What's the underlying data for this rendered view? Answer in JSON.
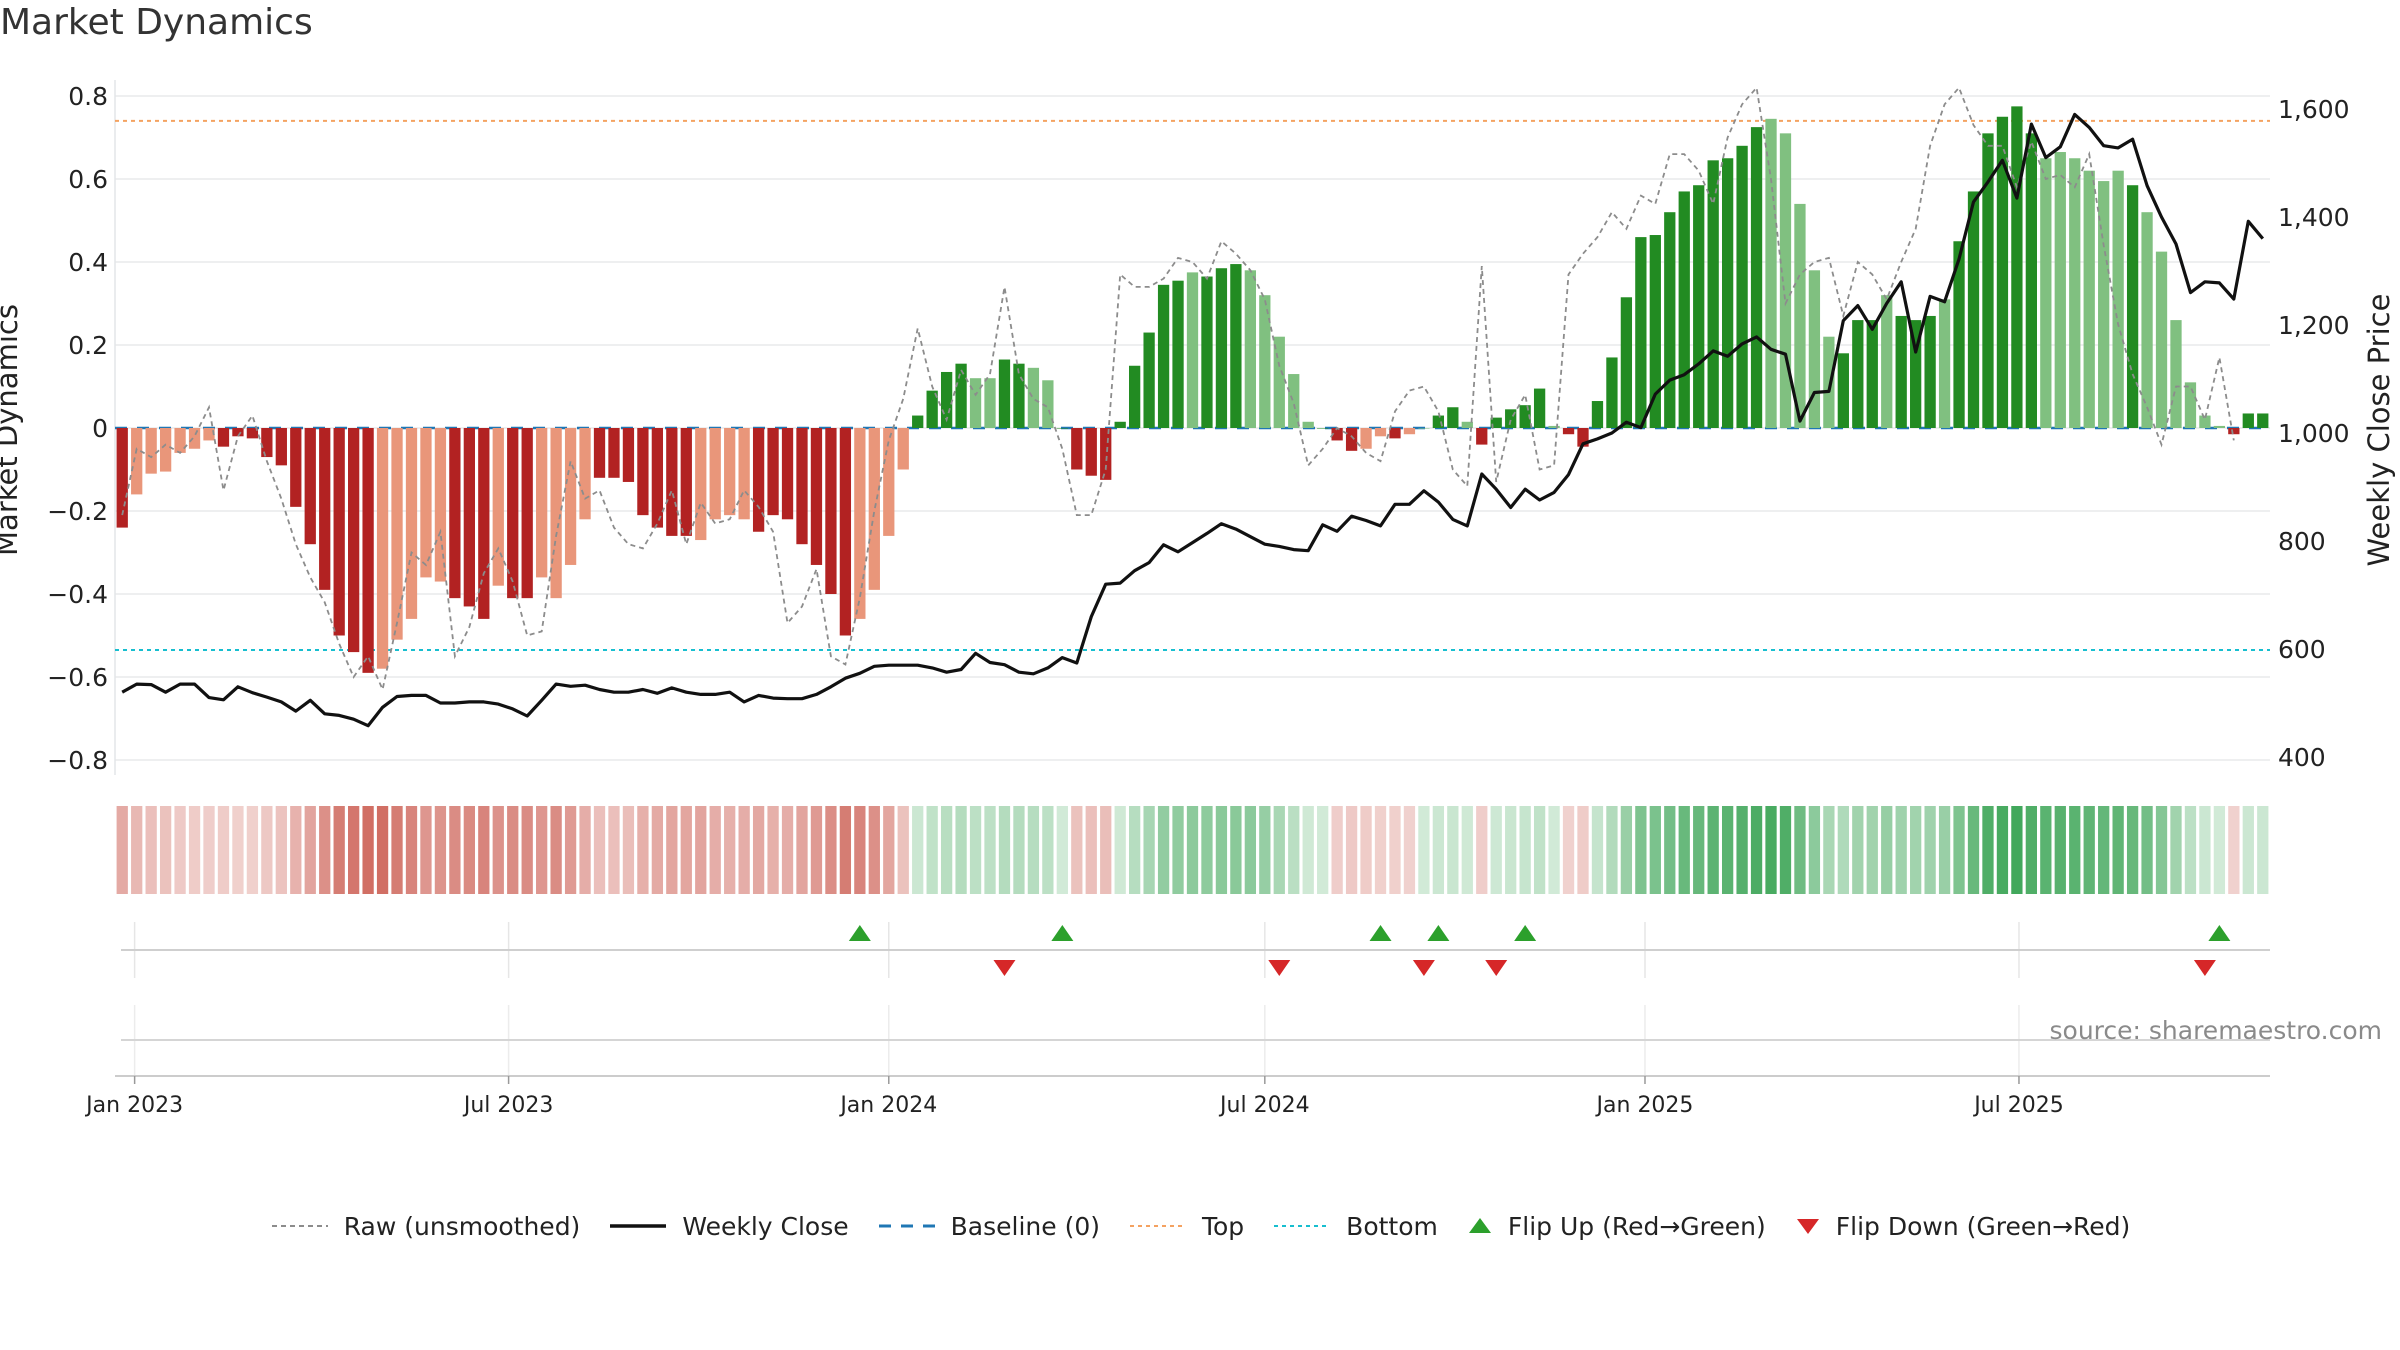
{
  "title": "Market Dynamics",
  "source": "source: sharemaestro.com",
  "y_left_label": "Market Dynamics",
  "y_right_label": "Weekly Close Price",
  "legend": [
    {
      "label": "Raw (unsmoothed)",
      "style": "dashed-gray"
    },
    {
      "label": "Weekly Close",
      "style": "solid-black"
    },
    {
      "label": "Baseline (0)",
      "style": "dashed-blue"
    },
    {
      "label": "Top",
      "style": "dotted-orange"
    },
    {
      "label": "Bottom",
      "style": "dotted-teal"
    },
    {
      "label": "Flip Up (Red→Green)",
      "style": "triangle-up-green"
    },
    {
      "label": "Flip Down (Green→Red)",
      "style": "triangle-down-red"
    }
  ],
  "colors": {
    "strong_green": "#228b22",
    "light_green": "#80c080",
    "strong_red": "#b22222",
    "light_red": "#e9967a",
    "raw": "#8c8c8c",
    "close": "#111111",
    "baseline": "#1f77b4",
    "top": "#f4a261",
    "bottom": "#17becf",
    "flip_up": "#2ca02c",
    "flip_down": "#d62728"
  },
  "chart_data": {
    "type": "bar",
    "title": "Market Dynamics",
    "start_week": "2022-12-26",
    "y_left_ticks": [
      0.8,
      0.6,
      0.4,
      0.2,
      0,
      -0.2,
      -0.4,
      -0.6,
      -0.8
    ],
    "y_left_tick_labels": [
      "0.8",
      "0.6",
      "0.4",
      "0.2",
      "0",
      "−0.2",
      "−0.4",
      "−0.6",
      "−0.8"
    ],
    "y_left_range": [
      -0.82,
      0.8
    ],
    "y_right_ticks": [
      1600,
      1400,
      1200,
      1000,
      800,
      600,
      400
    ],
    "y_right_tick_labels": [
      "1,600",
      "1,400",
      "1,200",
      "1,000",
      "800",
      "600",
      "400"
    ],
    "y_right_range": [
      380,
      1640
    ],
    "x_ticks": [
      "Jan 2023",
      "Jul 2023",
      "Jan 2024",
      "Jul 2024",
      "Jan 2025",
      "Jul 2025"
    ],
    "top_line": 0.74,
    "bottom_line": -0.535,
    "baseline": 0,
    "series": [
      {
        "name": "Market Dynamics",
        "values": [
          -0.24,
          -0.16,
          -0.11,
          -0.105,
          -0.06,
          -0.05,
          -0.03,
          -0.045,
          -0.02,
          -0.025,
          -0.07,
          -0.09,
          -0.19,
          -0.28,
          -0.39,
          -0.5,
          -0.54,
          -0.59,
          -0.58,
          -0.51,
          -0.46,
          -0.36,
          -0.37,
          -0.41,
          -0.43,
          -0.46,
          -0.38,
          -0.41,
          -0.41,
          -0.36,
          -0.41,
          -0.33,
          -0.22,
          -0.12,
          -0.12,
          -0.13,
          -0.21,
          -0.24,
          -0.26,
          -0.26,
          -0.27,
          -0.22,
          -0.21,
          -0.22,
          -0.25,
          -0.21,
          -0.22,
          -0.28,
          -0.33,
          -0.4,
          -0.5,
          -0.46,
          -0.39,
          -0.26,
          -0.1,
          0.03,
          0.09,
          0.135,
          0.155,
          0.12,
          0.12,
          0.165,
          0.155,
          0.145,
          0.115,
          0.0,
          -0.1,
          -0.115,
          -0.125,
          0.015,
          0.15,
          0.23,
          0.345,
          0.355,
          0.375,
          0.365,
          0.385,
          0.395,
          0.38,
          0.32,
          0.22,
          0.13,
          0.015,
          0.0,
          -0.03,
          -0.055,
          -0.05,
          -0.02,
          -0.025,
          -0.015,
          0.0,
          0.03,
          0.05,
          0.015,
          -0.04,
          0.025,
          0.045,
          0.055,
          0.095,
          0.005,
          -0.015,
          -0.045,
          0.065,
          0.17,
          0.315,
          0.46,
          0.465,
          0.52,
          0.57,
          0.585,
          0.645,
          0.65,
          0.68,
          0.725,
          0.745,
          0.71,
          0.54,
          0.38,
          0.22,
          0.18,
          0.26,
          0.26,
          0.32,
          0.27,
          0.26,
          0.27,
          0.31,
          0.45,
          0.57,
          0.71,
          0.75,
          0.775,
          0.71,
          0.65,
          0.665,
          0.65,
          0.62,
          0.595,
          0.62,
          0.585,
          0.52,
          0.425,
          0.26,
          0.11,
          0.03,
          0.005,
          -0.015,
          0.035,
          0.035
        ],
        "strong_flags": [
          1,
          0,
          0,
          0,
          0,
          0,
          0,
          1,
          1,
          1,
          1,
          1,
          1,
          1,
          1,
          1,
          1,
          1,
          0,
          0,
          0,
          0,
          0,
          1,
          1,
          1,
          0,
          1,
          1,
          0,
          0,
          0,
          0,
          1,
          1,
          1,
          1,
          1,
          1,
          1,
          0,
          0,
          0,
          0,
          1,
          1,
          1,
          1,
          1,
          1,
          1,
          0,
          0,
          0,
          0,
          1,
          1,
          1,
          1,
          0,
          0,
          1,
          1,
          0,
          0,
          1,
          1,
          1,
          1,
          1,
          1,
          1,
          1,
          1,
          0,
          1,
          1,
          1,
          0,
          0,
          0,
          0,
          0,
          1,
          1,
          1,
          0,
          0,
          1,
          0,
          0,
          1,
          1,
          0,
          1,
          1,
          1,
          1,
          1,
          0,
          1,
          1,
          1,
          1,
          1,
          1,
          1,
          1,
          1,
          1,
          1,
          1,
          1,
          1,
          0,
          0,
          0,
          0,
          0,
          1,
          1,
          1,
          0,
          1,
          1,
          1,
          0,
          1,
          1,
          1,
          1,
          1,
          1,
          0,
          0,
          0,
          0,
          0,
          0,
          1,
          0,
          0,
          0,
          0,
          0,
          0,
          1,
          1,
          1
        ]
      },
      {
        "name": "Raw (unsmoothed)",
        "values": [
          -0.21,
          -0.05,
          -0.07,
          -0.04,
          -0.06,
          -0.02,
          0.05,
          -0.15,
          -0.02,
          0.03,
          -0.08,
          -0.17,
          -0.28,
          -0.36,
          -0.42,
          -0.52,
          -0.6,
          -0.55,
          -0.63,
          -0.47,
          -0.3,
          -0.33,
          -0.25,
          -0.55,
          -0.48,
          -0.35,
          -0.29,
          -0.37,
          -0.5,
          -0.49,
          -0.26,
          -0.08,
          -0.17,
          -0.15,
          -0.24,
          -0.28,
          -0.29,
          -0.23,
          -0.15,
          -0.28,
          -0.18,
          -0.23,
          -0.22,
          -0.15,
          -0.19,
          -0.25,
          -0.47,
          -0.43,
          -0.34,
          -0.55,
          -0.57,
          -0.41,
          -0.2,
          -0.03,
          0.07,
          0.24,
          0.1,
          0.02,
          0.14,
          0.08,
          0.13,
          0.34,
          0.13,
          0.07,
          0.05,
          -0.05,
          -0.21,
          -0.21,
          -0.1,
          0.37,
          0.34,
          0.34,
          0.36,
          0.41,
          0.4,
          0.36,
          0.45,
          0.42,
          0.38,
          0.31,
          0.15,
          0.06,
          -0.09,
          -0.05,
          0.0,
          -0.02,
          -0.06,
          -0.08,
          0.04,
          0.09,
          0.1,
          0.04,
          -0.1,
          -0.14,
          0.39,
          -0.13,
          0.02,
          0.08,
          -0.1,
          -0.09,
          0.37,
          0.42,
          0.46,
          0.52,
          0.48,
          0.56,
          0.54,
          0.66,
          0.66,
          0.62,
          0.54,
          0.7,
          0.78,
          0.82,
          0.6,
          0.3,
          0.37,
          0.4,
          0.41,
          0.27,
          0.4,
          0.37,
          0.31,
          0.4,
          0.48,
          0.68,
          0.78,
          0.82,
          0.73,
          0.68,
          0.68,
          0.58,
          0.69,
          0.6,
          0.61,
          0.58,
          0.66,
          0.44,
          0.25,
          0.13,
          0.05,
          -0.04,
          0.1,
          0.1,
          0.02,
          0.17,
          -0.03
        ]
      },
      {
        "name": "Weekly Close",
        "values": [
          520,
          535,
          534,
          520,
          535,
          535,
          510,
          506,
          530,
          519,
          511,
          502,
          485,
          505,
          480,
          477,
          470,
          458,
          492,
          512,
          514,
          514,
          500,
          500,
          502,
          502,
          498,
          489,
          476,
          505,
          535,
          531,
          533,
          525,
          520,
          520,
          525,
          518,
          528,
          520,
          516,
          516,
          520,
          502,
          514,
          509,
          508,
          508,
          516,
          530,
          546,
          555,
          568,
          570,
          570,
          570,
          565,
          557,
          562,
          592,
          575,
          571,
          557,
          554,
          565,
          584,
          574,
          660,
          720,
          722,
          745,
          760,
          793,
          780,
          797,
          814,
          832,
          822,
          808,
          794,
          790,
          784,
          782,
          830,
          818,
          846,
          838,
          828,
          868,
          868,
          893,
          872,
          840,
          828,
          924,
          896,
          862,
          896,
          876,
          890,
          923,
          980,
          989,
          1000,
          1020,
          1010,
          1072,
          1098,
          1108,
          1128,
          1152,
          1142,
          1165,
          1178,
          1155,
          1146,
          1022,
          1075,
          1077,
          1208,
          1236,
          1192,
          1240,
          1280,
          1150,
          1253,
          1243,
          1322,
          1428,
          1465,
          1505,
          1435,
          1572,
          1510,
          1530,
          1590,
          1566,
          1532,
          1528,
          1544,
          1458,
          1400,
          1350,
          1260,
          1280,
          1278,
          1248,
          1392,
          1360
        ]
      },
      {
        "name": "Flip Up (Red→Green)",
        "weeks": [
          51,
          65,
          87,
          91,
          97,
          145
        ]
      },
      {
        "name": "Flip Down (Green→Red)",
        "weeks": [
          61,
          80,
          90,
          95,
          144
        ]
      }
    ]
  }
}
